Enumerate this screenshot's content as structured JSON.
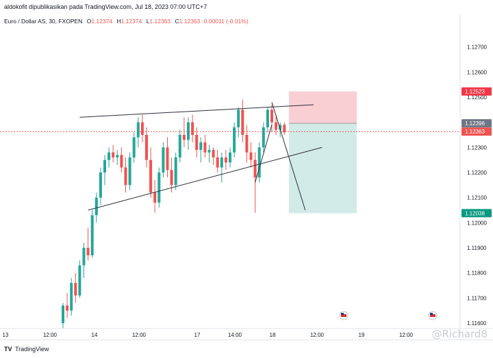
{
  "header": {
    "published": "aldokofit dipublikasikan pada TradingView.com, Jul 18, 2023 07:00 UTC+7"
  },
  "legend": {
    "symbol": "Euro / Dollar AS, 30, FXOPEN",
    "o_label": "O",
    "o": "1.12374",
    "h_label": "H",
    "h": "1.12374",
    "l_label": "L",
    "l": "1.12363",
    "c_label": "C",
    "c": "1.12363",
    "change": "-0.00011 (-0.01%)"
  },
  "footer": {
    "brand": "TradingView",
    "logo": "TV",
    "watermark": "@Richard8"
  },
  "colors": {
    "up": "#26a69a",
    "down": "#ef5350",
    "stop": "#f8c7cc",
    "target": "#cde9e6",
    "entry_tag": "#6f7786",
    "last_tag": "#ef5350",
    "target_tag": "#089981",
    "stop_tag": "#f23645"
  },
  "chart_data": {
    "type": "candlestick",
    "symbol": "EURUSD",
    "ylim": [
      1.116,
      1.128
    ],
    "y_ticks": [
      "1.12700",
      "1.12600",
      "1.12500",
      "1.12400",
      "1.12300",
      "1.12200",
      "1.12100",
      "1.12000",
      "1.11900",
      "1.11800",
      "1.11700",
      "1.11600"
    ],
    "x_ticks": [
      "13",
      "12:00",
      "14",
      "12:00",
      "17",
      "14:00",
      "18",
      "12:00",
      "19",
      "12:00"
    ],
    "price_tags": {
      "stop": "1.12523",
      "entry": "1.12396",
      "last": "1.12363",
      "target": "1.12038"
    },
    "candles": [
      {
        "o": 1.116,
        "h": 1.1168,
        "l": 1.1158,
        "c": 1.1167
      },
      {
        "o": 1.1167,
        "h": 1.1172,
        "l": 1.1162,
        "c": 1.1165
      },
      {
        "o": 1.1165,
        "h": 1.1178,
        "l": 1.1163,
        "c": 1.1176
      },
      {
        "o": 1.1176,
        "h": 1.118,
        "l": 1.1168,
        "c": 1.1171
      },
      {
        "o": 1.1171,
        "h": 1.1185,
        "l": 1.117,
        "c": 1.1183
      },
      {
        "o": 1.1183,
        "h": 1.1192,
        "l": 1.1178,
        "c": 1.119
      },
      {
        "o": 1.119,
        "h": 1.1198,
        "l": 1.1185,
        "c": 1.1187
      },
      {
        "o": 1.1187,
        "h": 1.1205,
        "l": 1.1186,
        "c": 1.1203
      },
      {
        "o": 1.1203,
        "h": 1.1212,
        "l": 1.12,
        "c": 1.121
      },
      {
        "o": 1.121,
        "h": 1.1222,
        "l": 1.1207,
        "c": 1.122
      },
      {
        "o": 1.122,
        "h": 1.1227,
        "l": 1.1215,
        "c": 1.1225
      },
      {
        "o": 1.1225,
        "h": 1.123,
        "l": 1.1222,
        "c": 1.1228
      },
      {
        "o": 1.1228,
        "h": 1.1231,
        "l": 1.1224,
        "c": 1.1226
      },
      {
        "o": 1.1226,
        "h": 1.1229,
        "l": 1.1223,
        "c": 1.1227
      },
      {
        "o": 1.1227,
        "h": 1.123,
        "l": 1.122,
        "c": 1.1222
      },
      {
        "o": 1.1222,
        "h": 1.1226,
        "l": 1.1212,
        "c": 1.1215
      },
      {
        "o": 1.1215,
        "h": 1.1228,
        "l": 1.1213,
        "c": 1.1226
      },
      {
        "o": 1.1226,
        "h": 1.1236,
        "l": 1.1224,
        "c": 1.1234
      },
      {
        "o": 1.1234,
        "h": 1.1242,
        "l": 1.123,
        "c": 1.124
      },
      {
        "o": 1.124,
        "h": 1.1243,
        "l": 1.1232,
        "c": 1.1235
      },
      {
        "o": 1.1235,
        "h": 1.1238,
        "l": 1.1222,
        "c": 1.1225
      },
      {
        "o": 1.1225,
        "h": 1.123,
        "l": 1.121,
        "c": 1.1212
      },
      {
        "o": 1.1212,
        "h": 1.1217,
        "l": 1.1204,
        "c": 1.1208
      },
      {
        "o": 1.1208,
        "h": 1.1222,
        "l": 1.1206,
        "c": 1.122
      },
      {
        "o": 1.122,
        "h": 1.1232,
        "l": 1.1218,
        "c": 1.123
      },
      {
        "o": 1.123,
        "h": 1.1234,
        "l": 1.1218,
        "c": 1.1221
      },
      {
        "o": 1.1221,
        "h": 1.1226,
        "l": 1.1212,
        "c": 1.1215
      },
      {
        "o": 1.1215,
        "h": 1.1228,
        "l": 1.1213,
        "c": 1.1226
      },
      {
        "o": 1.1226,
        "h": 1.1237,
        "l": 1.1224,
        "c": 1.1235
      },
      {
        "o": 1.1235,
        "h": 1.1242,
        "l": 1.123,
        "c": 1.1233
      },
      {
        "o": 1.1233,
        "h": 1.1242,
        "l": 1.1229,
        "c": 1.124
      },
      {
        "o": 1.124,
        "h": 1.1243,
        "l": 1.1232,
        "c": 1.1235
      },
      {
        "o": 1.1235,
        "h": 1.1238,
        "l": 1.1226,
        "c": 1.1229
      },
      {
        "o": 1.1229,
        "h": 1.1234,
        "l": 1.1224,
        "c": 1.1232
      },
      {
        "o": 1.1232,
        "h": 1.1235,
        "l": 1.1226,
        "c": 1.1228
      },
      {
        "o": 1.1228,
        "h": 1.1231,
        "l": 1.1224,
        "c": 1.1229
      },
      {
        "o": 1.1229,
        "h": 1.123,
        "l": 1.1223,
        "c": 1.1226
      },
      {
        "o": 1.1226,
        "h": 1.1229,
        "l": 1.122,
        "c": 1.1222
      },
      {
        "o": 1.1222,
        "h": 1.1228,
        "l": 1.1216,
        "c": 1.1226
      },
      {
        "o": 1.1226,
        "h": 1.1229,
        "l": 1.1221,
        "c": 1.1224
      },
      {
        "o": 1.1224,
        "h": 1.123,
        "l": 1.1222,
        "c": 1.1228
      },
      {
        "o": 1.1228,
        "h": 1.124,
        "l": 1.1226,
        "c": 1.1238
      },
      {
        "o": 1.1238,
        "h": 1.1246,
        "l": 1.1234,
        "c": 1.1245
      },
      {
        "o": 1.1245,
        "h": 1.1249,
        "l": 1.1232,
        "c": 1.1235
      },
      {
        "o": 1.1235,
        "h": 1.1239,
        "l": 1.1224,
        "c": 1.1228
      },
      {
        "o": 1.1228,
        "h": 1.1232,
        "l": 1.1222,
        "c": 1.1225
      },
      {
        "o": 1.1225,
        "h": 1.1228,
        "l": 1.1204,
        "c": 1.1218
      },
      {
        "o": 1.1218,
        "h": 1.1232,
        "l": 1.1216,
        "c": 1.123
      },
      {
        "o": 1.123,
        "h": 1.124,
        "l": 1.1228,
        "c": 1.1238
      },
      {
        "o": 1.1238,
        "h": 1.1246,
        "l": 1.1236,
        "c": 1.1245
      },
      {
        "o": 1.1245,
        "h": 1.1247,
        "l": 1.1236,
        "c": 1.124
      },
      {
        "o": 1.124,
        "h": 1.1243,
        "l": 1.1235,
        "c": 1.1237
      },
      {
        "o": 1.1237,
        "h": 1.124,
        "l": 1.1234,
        "c": 1.1239
      },
      {
        "o": 1.1239,
        "h": 1.124,
        "l": 1.1235,
        "c": 1.1236
      }
    ],
    "annotations": [
      {
        "type": "trendline",
        "name": "upper",
        "from": [
          4,
          1.1242
        ],
        "to": [
          60,
          1.1247
        ]
      },
      {
        "type": "trendline",
        "name": "lower",
        "from": [
          6,
          1.1205
        ],
        "to": [
          62,
          1.123
        ]
      },
      {
        "type": "projection",
        "from": [
          50,
          1.1248
        ],
        "to": [
          58,
          1.1205
        ]
      },
      {
        "type": "long-short-position",
        "entry": 1.12396,
        "stop": 1.12523,
        "target": 1.12038,
        "start": 51,
        "end": 63
      }
    ]
  }
}
